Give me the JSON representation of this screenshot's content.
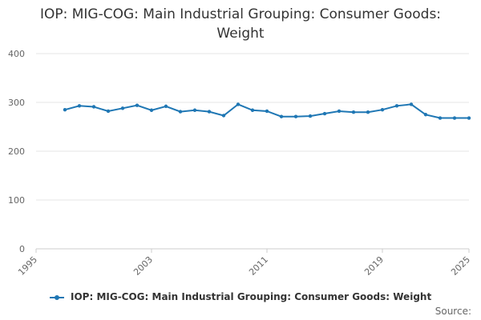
{
  "chart_data": {
    "type": "line",
    "title_lines": [
      "IOP: MIG-COG: Main Industrial Grouping: Consumer Goods:",
      "Weight"
    ],
    "xlabel": "",
    "ylabel": "",
    "xlim": [
      1995,
      2025
    ],
    "ylim": [
      0,
      400
    ],
    "x_ticks": [
      "1995",
      "2003",
      "2011",
      "2019",
      "2025"
    ],
    "y_ticks": [
      "0",
      "100",
      "200",
      "300",
      "400"
    ],
    "grid": true,
    "legend_position": "bottom",
    "series": [
      {
        "name": "IOP: MIG-COG: Main Industrial Grouping: Consumer Goods: Weight",
        "color": "#1f77b4",
        "x": [
          1997,
          1998,
          1999,
          2000,
          2001,
          2002,
          2003,
          2004,
          2005,
          2006,
          2007,
          2008,
          2009,
          2010,
          2011,
          2012,
          2013,
          2014,
          2015,
          2016,
          2017,
          2018,
          2019,
          2020,
          2021,
          2022,
          2023,
          2024,
          2025
        ],
        "values": [
          285,
          293,
          291,
          282,
          288,
          294,
          284,
          292,
          281,
          284,
          281,
          273,
          296,
          284,
          282,
          271,
          271,
          272,
          277,
          282,
          280,
          280,
          285,
          293,
          296,
          275,
          268,
          268,
          268
        ]
      }
    ]
  },
  "source_label": "Source:"
}
